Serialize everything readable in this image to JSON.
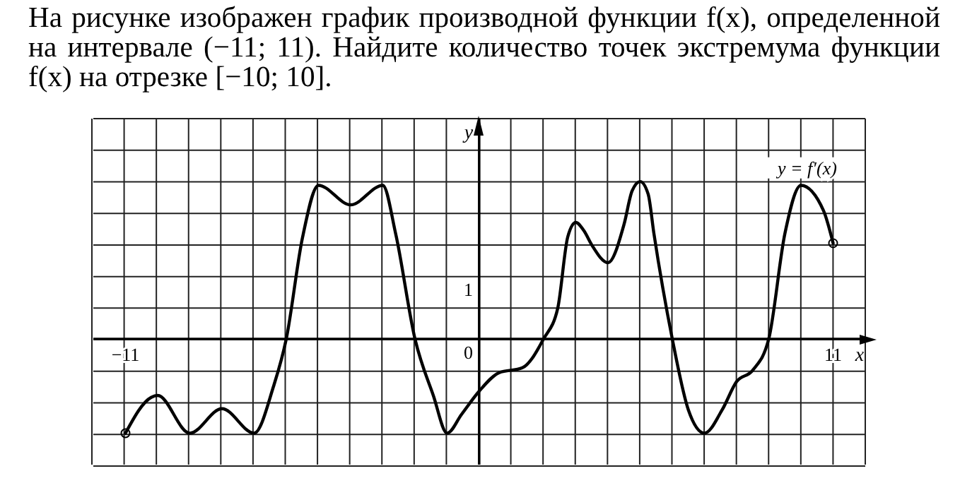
{
  "chart_data": {
    "type": "line",
    "title": "На рисунке изображен график производной функции f(x), определенной на интервале (−11; 11). Найдите количество точек экстремума функции f(x) на отрезке [−10; 10].",
    "xlabel": "x",
    "ylabel": "y",
    "x": [
      -11,
      -10.2,
      -10,
      -9,
      -8,
      -7,
      -6.4,
      -6,
      -5.5,
      -5,
      -4,
      -3,
      -2.6,
      -2,
      -1.43,
      -1,
      -0.55,
      0,
      0.61,
      1.34,
      2,
      2.44,
      2.75,
      3,
      3.25,
      3.5,
      4,
      4.5,
      4.75,
      5,
      5.25,
      5.43,
      6,
      6.5,
      7,
      7.55,
      8,
      8.5,
      9,
      9.5,
      10,
      10.7,
      11
    ],
    "series": [
      {
        "name": "y = f′(x)",
        "color": "#000000",
        "values": [
          -1.5,
          -0.93,
          -0.9,
          -1.5,
          -1.11,
          -1.5,
          -0.76,
          0,
          1.6,
          2.44,
          2.13,
          2.44,
          1.67,
          0,
          -0.9,
          -1.5,
          -1.2,
          -0.83,
          -0.54,
          -0.46,
          0,
          0.49,
          1.62,
          1.85,
          1.72,
          1.49,
          1.21,
          1.82,
          2.35,
          2.5,
          2.3,
          1.67,
          0,
          -1.13,
          -1.5,
          -1.13,
          -0.68,
          -0.5,
          0,
          1.67,
          2.44,
          2.04,
          1.52
        ]
      }
    ],
    "xlim": [
      -12,
      12
    ],
    "ylim": [
      -2,
      3.5
    ],
    "xticks": [
      {
        "value": -12,
        "label": null
      },
      -11,
      {
        "value": -10,
        "label": null
      },
      {
        "value": -9,
        "label": null
      },
      {
        "value": -8,
        "label": null
      },
      {
        "value": -7,
        "label": null
      },
      {
        "value": -6,
        "label": null
      },
      {
        "value": -5,
        "label": null
      },
      {
        "value": -4,
        "label": null
      },
      {
        "value": -3,
        "label": null
      },
      {
        "value": -2,
        "label": null
      },
      {
        "value": -1,
        "label": null
      },
      {
        "value": 0,
        "label": null
      },
      {
        "value": 1,
        "label": null
      },
      {
        "value": 2,
        "label": null
      },
      {
        "value": 3,
        "label": null
      },
      {
        "value": 4,
        "label": null
      },
      {
        "value": 5,
        "label": null
      },
      {
        "value": 6,
        "label": null
      },
      {
        "value": 7,
        "label": null
      },
      {
        "value": 8,
        "label": null
      },
      {
        "value": 9,
        "label": null
      },
      {
        "value": 10,
        "label": null
      },
      11,
      {
        "value": 12,
        "label": null
      }
    ],
    "yticks": [
      {
        "value": -2,
        "label": null
      },
      {
        "value": -1.5,
        "label": null
      },
      {
        "value": -1,
        "label": null
      },
      {
        "value": -0.5,
        "label": null
      },
      0,
      {
        "value": 0.5,
        "label": null
      },
      1,
      {
        "value": 1.5,
        "label": null
      },
      {
        "value": 2,
        "label": null
      },
      {
        "value": 2.5,
        "label": null
      },
      {
        "value": 3,
        "label": null
      },
      {
        "value": 3.5,
        "label": null
      }
    ],
    "grid": true,
    "marker": "none",
    "line_style": "solid"
  }
}
